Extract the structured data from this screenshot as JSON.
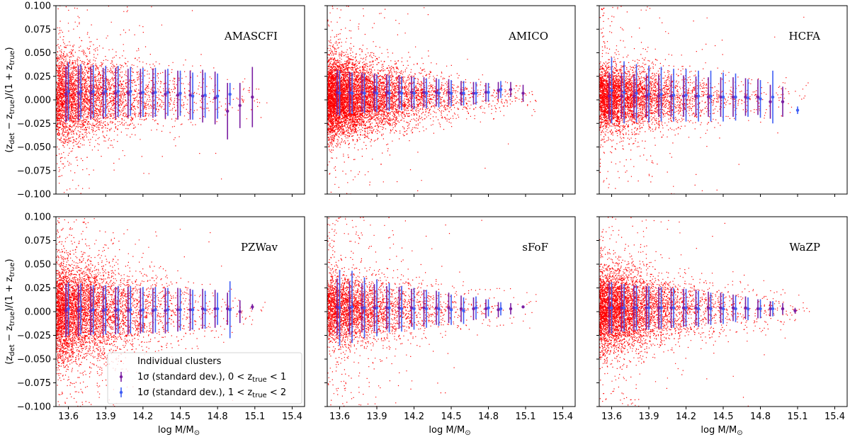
{
  "chart_data": {
    "type": "scatter",
    "layout": "2x3 grid",
    "xlabel": "log M/M",
    "xlabel_subscript": "⊙",
    "ylabel_parts": [
      "(z",
      "det",
      " − z",
      "true",
      ")/(1 + z",
      "true",
      ")"
    ],
    "xlim": [
      13.5,
      15.5
    ],
    "ylim": [
      -0.1,
      0.1
    ],
    "x_ticks": [
      13.6,
      13.9,
      14.2,
      14.5,
      14.8,
      15.1,
      15.4
    ],
    "x_tick_labels": [
      "13.6",
      "13.9",
      "14.2",
      "14.5",
      "14.8",
      "15.1",
      "15.4"
    ],
    "y_ticks": [
      -0.1,
      -0.075,
      -0.05,
      -0.025,
      0.0,
      0.025,
      0.05,
      0.075,
      0.1
    ],
    "y_tick_labels": [
      "−0.100",
      "−0.075",
      "−0.050",
      "−0.025",
      "0.000",
      "0.025",
      "0.050",
      "0.075",
      "0.100"
    ],
    "colors": {
      "scatter": "#ff0000",
      "series_low_z": "#7b1fa2",
      "series_high_z": "#3f5ef5"
    },
    "legend": {
      "placement": "lower-right of bottom-left panel",
      "entries": [
        {
          "text": "Individual clusters",
          "marker": "dot",
          "color": "#ff0000"
        },
        {
          "text_before": "1σ (standard dev.), 0 < z",
          "sub": "true",
          "text_after": " < 1",
          "marker": "errorbar",
          "color": "#7b1fa2"
        },
        {
          "text_before": "1σ (standard dev.), 1 < z",
          "sub": "true",
          "text_after": " < 2",
          "marker": "errorbar",
          "color": "#3f5ef5"
        }
      ]
    },
    "panels": [
      {
        "title": "AMASCFI",
        "scatter": {
          "density": 1.0,
          "mean": 0.003,
          "sigma_low": 0.024,
          "sigma_high": 0.01,
          "outlier_frac": 0.07
        },
        "series": [
          {
            "name": "0 < z_true < 1",
            "x": [
              13.58,
              13.68,
              13.78,
              13.88,
              13.98,
              14.08,
              14.18,
              14.28,
              14.38,
              14.48,
              14.58,
              14.68,
              14.78,
              14.88,
              14.98,
              15.08
            ],
            "y": [
              0.006,
              0.007,
              0.007,
              0.007,
              0.007,
              0.007,
              0.007,
              0.007,
              0.006,
              0.005,
              0.005,
              0.004,
              0.002,
              -0.012,
              -0.006,
              0.003
            ],
            "err": [
              0.03,
              0.029,
              0.028,
              0.027,
              0.027,
              0.026,
              0.026,
              0.026,
              0.026,
              0.026,
              0.026,
              0.028,
              0.028,
              0.03,
              0.024,
              0.032
            ]
          },
          {
            "name": "1 < z_true < 2",
            "x": [
              13.6,
              13.7,
              13.8,
              13.9,
              14.0,
              14.1,
              14.2,
              14.3,
              14.4,
              14.5,
              14.6,
              14.7,
              14.8,
              14.9
            ],
            "y": [
              0.009,
              0.009,
              0.009,
              0.009,
              0.009,
              0.009,
              0.008,
              0.008,
              0.008,
              0.007,
              0.004,
              0.005,
              0.004,
              0.006
            ],
            "err": [
              0.031,
              0.029,
              0.028,
              0.027,
              0.027,
              0.026,
              0.026,
              0.026,
              0.025,
              0.024,
              0.025,
              0.024,
              0.024,
              0.012
            ]
          }
        ]
      },
      {
        "title": "AMICO",
        "scatter": {
          "density": 1.8,
          "mean": 0.002,
          "sigma_low": 0.022,
          "sigma_high": 0.007,
          "outlier_frac": 0.03
        },
        "series": [
          {
            "name": "0 < z_true < 1",
            "x": [
              13.58,
              13.68,
              13.78,
              13.88,
              13.98,
              14.08,
              14.18,
              14.28,
              14.38,
              14.48,
              14.58,
              14.68,
              14.78,
              14.88,
              14.98,
              15.08
            ],
            "y": [
              0.008,
              0.008,
              0.008,
              0.008,
              0.008,
              0.008,
              0.008,
              0.008,
              0.008,
              0.008,
              0.007,
              0.007,
              0.008,
              0.01,
              0.011,
              0.007
            ],
            "err": [
              0.024,
              0.022,
              0.021,
              0.02,
              0.019,
              0.018,
              0.017,
              0.016,
              0.015,
              0.014,
              0.013,
              0.012,
              0.01,
              0.009,
              0.008,
              0.009
            ]
          },
          {
            "name": "1 < z_true < 2",
            "x": [
              13.6,
              13.7,
              13.8,
              13.9,
              14.0,
              14.1,
              14.2,
              14.3,
              14.4,
              14.5,
              14.6,
              14.7,
              14.8,
              14.9
            ],
            "y": [
              0.007,
              0.007,
              0.007,
              0.007,
              0.007,
              0.007,
              0.007,
              0.007,
              0.007,
              0.007,
              0.007,
              0.007,
              0.008,
              0.011
            ],
            "err": [
              0.024,
              0.022,
              0.021,
              0.02,
              0.019,
              0.018,
              0.017,
              0.016,
              0.015,
              0.014,
              0.013,
              0.012,
              0.01,
              0.009
            ]
          }
        ]
      },
      {
        "title": "HCFA",
        "scatter": {
          "density": 1.1,
          "mean": 0.002,
          "sigma_low": 0.018,
          "sigma_high": 0.01,
          "outlier_frac": 0.06
        },
        "series": [
          {
            "name": "0 < z_true < 1",
            "x": [
              13.58,
              13.68,
              13.78,
              13.88,
              13.98,
              14.08,
              14.18,
              14.28,
              14.38,
              14.48,
              14.58,
              14.68,
              14.78,
              14.88,
              14.98
            ],
            "y": [
              0.004,
              0.004,
              0.004,
              0.004,
              0.004,
              0.004,
              0.004,
              0.004,
              0.003,
              0.003,
              0.003,
              0.003,
              0.003,
              -0.002,
              -0.002
            ],
            "err": [
              0.025,
              0.024,
              0.023,
              0.023,
              0.022,
              0.022,
              0.022,
              0.021,
              0.021,
              0.021,
              0.021,
              0.02,
              0.019,
              0.018,
              0.016
            ]
          },
          {
            "name": "1 < z_true < 2",
            "x": [
              13.6,
              13.7,
              13.8,
              13.9,
              14.0,
              14.1,
              14.2,
              14.3,
              14.4,
              14.5,
              14.6,
              14.7,
              14.8,
              14.9,
              15.1
            ],
            "y": [
              0.01,
              0.008,
              0.007,
              0.006,
              0.006,
              0.005,
              0.005,
              0.004,
              0.004,
              0.003,
              0.003,
              0.002,
              0.001,
              0.003,
              -0.011
            ],
            "err": [
              0.035,
              0.033,
              0.031,
              0.03,
              0.029,
              0.028,
              0.028,
              0.027,
              0.027,
              0.026,
              0.025,
              0.02,
              0.02,
              0.028,
              0.004
            ]
          }
        ]
      },
      {
        "title": "PZWav",
        "scatter": {
          "density": 1.3,
          "mean": 0.0,
          "sigma_low": 0.028,
          "sigma_high": 0.011,
          "outlier_frac": 0.07
        },
        "series": [
          {
            "name": "0 < z_true < 1",
            "x": [
              13.58,
              13.68,
              13.78,
              13.88,
              13.98,
              14.08,
              14.18,
              14.28,
              14.38,
              14.48,
              14.58,
              14.68,
              14.78,
              14.88,
              14.98,
              15.08
            ],
            "y": [
              0.001,
              0.001,
              0.001,
              0.001,
              0.001,
              0.001,
              0.001,
              0.001,
              0.001,
              0.002,
              0.002,
              0.003,
              0.003,
              0.003,
              0.0,
              0.005
            ],
            "err": [
              0.028,
              0.027,
              0.026,
              0.026,
              0.025,
              0.025,
              0.024,
              0.024,
              0.024,
              0.023,
              0.022,
              0.021,
              0.02,
              0.017,
              0.012,
              0.003
            ]
          },
          {
            "name": "1 < z_true < 2",
            "x": [
              13.6,
              13.7,
              13.8,
              13.9,
              14.0,
              14.1,
              14.2,
              14.3,
              14.4,
              14.5,
              14.6,
              14.7,
              14.8,
              14.9
            ],
            "y": [
              0.003,
              0.003,
              0.002,
              0.002,
              0.002,
              0.002,
              0.002,
              0.002,
              0.002,
              0.002,
              0.002,
              0.002,
              0.003,
              0.002
            ],
            "err": [
              0.028,
              0.027,
              0.026,
              0.026,
              0.025,
              0.025,
              0.024,
              0.024,
              0.023,
              0.022,
              0.021,
              0.02,
              0.017,
              0.03
            ]
          }
        ]
      },
      {
        "title": "sFoF",
        "scatter": {
          "density": 0.9,
          "mean": 0.002,
          "sigma_low": 0.018,
          "sigma_high": 0.012,
          "outlier_frac": 0.09
        },
        "series": [
          {
            "name": "0 < z_true < 1",
            "x": [
              13.58,
              13.68,
              13.78,
              13.88,
              13.98,
              14.08,
              14.18,
              14.28,
              14.38,
              14.48,
              14.58,
              14.68,
              14.78,
              14.88,
              14.98,
              15.08
            ],
            "y": [
              0.005,
              0.004,
              0.004,
              0.004,
              0.004,
              0.004,
              0.004,
              0.004,
              0.004,
              0.004,
              0.003,
              0.003,
              0.003,
              0.002,
              0.003,
              0.005
            ],
            "err": [
              0.03,
              0.028,
              0.026,
              0.025,
              0.023,
              0.022,
              0.02,
              0.019,
              0.018,
              0.016,
              0.014,
              0.012,
              0.01,
              0.008,
              0.006,
              0.001
            ]
          },
          {
            "name": "1 < z_true < 2",
            "x": [
              13.6,
              13.7,
              13.8,
              13.9,
              14.0,
              14.1,
              14.2,
              14.3,
              14.4,
              14.5,
              14.6,
              14.7,
              14.8,
              14.9
            ],
            "y": [
              0.004,
              0.005,
              0.004,
              0.004,
              0.004,
              0.003,
              0.003,
              0.003,
              0.003,
              0.002,
              0.001,
              0.004,
              0.004,
              0.003
            ],
            "err": [
              0.04,
              0.038,
              0.032,
              0.03,
              0.026,
              0.024,
              0.022,
              0.02,
              0.018,
              0.016,
              0.014,
              0.012,
              0.009,
              0.007
            ]
          }
        ]
      },
      {
        "title": "WaZP",
        "scatter": {
          "density": 1.3,
          "mean": 0.002,
          "sigma_low": 0.022,
          "sigma_high": 0.01,
          "outlier_frac": 0.05
        },
        "series": [
          {
            "name": "0 < z_true < 1",
            "x": [
              13.58,
              13.68,
              13.78,
              13.88,
              13.98,
              14.08,
              14.18,
              14.28,
              14.38,
              14.48,
              14.58,
              14.68,
              14.78,
              14.88,
              14.98,
              15.08
            ],
            "y": [
              0.004,
              0.004,
              0.004,
              0.004,
              0.004,
              0.004,
              0.004,
              0.004,
              0.004,
              0.004,
              0.004,
              0.004,
              0.003,
              0.003,
              0.003,
              0.001
            ],
            "err": [
              0.027,
              0.025,
              0.024,
              0.023,
              0.022,
              0.021,
              0.02,
              0.019,
              0.017,
              0.016,
              0.014,
              0.012,
              0.01,
              0.008,
              0.006,
              0.003
            ]
          },
          {
            "name": "1 < z_true < 2",
            "x": [
              13.6,
              13.7,
              13.8,
              13.9,
              14.0,
              14.1,
              14.2,
              14.3,
              14.4,
              14.5,
              14.6,
              14.7,
              14.8,
              14.9
            ],
            "y": [
              0.004,
              0.004,
              0.004,
              0.004,
              0.004,
              0.004,
              0.004,
              0.003,
              0.003,
              0.003,
              0.003,
              0.003,
              0.003,
              0.003
            ],
            "err": [
              0.027,
              0.025,
              0.024,
              0.023,
              0.022,
              0.021,
              0.02,
              0.019,
              0.017,
              0.016,
              0.014,
              0.012,
              0.01,
              0.008
            ]
          }
        ]
      }
    ]
  }
}
